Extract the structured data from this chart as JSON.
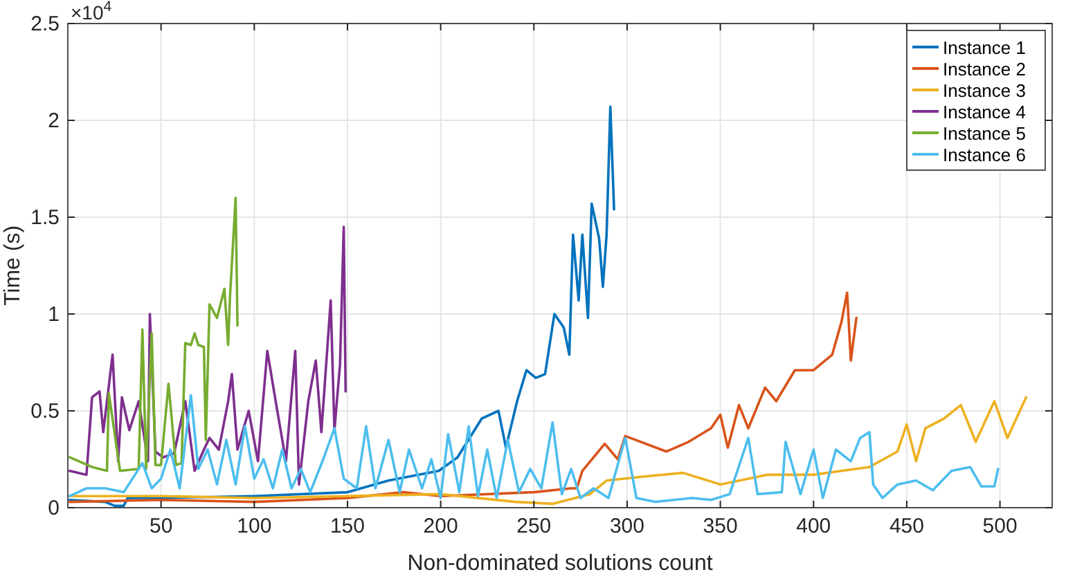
{
  "chart_data": {
    "type": "line",
    "xlabel": "Non-dominated solutions count",
    "ylabel": "Time (s)",
    "annotations": [
      "×10$^{4}$"
    ],
    "xlim": [
      0,
      528
    ],
    "ylim": [
      0,
      2.5
    ],
    "xticks": [
      50,
      100,
      150,
      200,
      250,
      300,
      350,
      400,
      450,
      500
    ],
    "yticks": [
      0,
      0.5,
      1,
      1.5,
      2,
      2.5
    ],
    "grid": true,
    "legend": "top right",
    "line_style": "solid",
    "marker": "none",
    "series": [
      {
        "name": "Instance 1",
        "color": "#0072bd",
        "x": [
          1,
          20,
          25,
          30,
          32,
          50,
          100,
          150,
          172,
          199,
          209,
          222,
          231,
          235,
          241,
          246,
          251,
          256,
          261,
          266,
          269,
          271,
          274,
          276,
          279,
          281,
          285,
          287,
          289,
          291,
          293
        ],
        "values": [
          0.04,
          0.03,
          0.01,
          0.01,
          0.05,
          0.05,
          0.06,
          0.08,
          0.14,
          0.19,
          0.26,
          0.46,
          0.5,
          0.31,
          0.55,
          0.71,
          0.67,
          0.69,
          1.0,
          0.93,
          0.79,
          1.41,
          1.07,
          1.41,
          0.98,
          1.57,
          1.39,
          1.14,
          1.41,
          2.07,
          1.54
        ]
      },
      {
        "name": "Instance 2",
        "color": "#d95319",
        "x": [
          1,
          50,
          100,
          150,
          180,
          200,
          250,
          270,
          273,
          276,
          288,
          295,
          299,
          321,
          333,
          345,
          350,
          354,
          360,
          365,
          374,
          380,
          390,
          400,
          410,
          415,
          418,
          420,
          423
        ],
        "values": [
          0.03,
          0.04,
          0.03,
          0.05,
          0.08,
          0.06,
          0.08,
          0.1,
          0.1,
          0.19,
          0.33,
          0.25,
          0.37,
          0.29,
          0.34,
          0.41,
          0.48,
          0.31,
          0.53,
          0.41,
          0.62,
          0.55,
          0.71,
          0.71,
          0.79,
          0.96,
          1.11,
          0.76,
          0.98
        ]
      },
      {
        "name": "Instance 3",
        "color": "#edb120",
        "x": [
          1,
          50,
          100,
          150,
          200,
          240,
          260,
          280,
          289,
          308,
          330,
          350,
          375,
          400,
          415,
          430,
          445,
          450,
          455,
          460,
          470,
          479,
          487,
          497,
          504,
          514
        ],
        "values": [
          0.06,
          0.06,
          0.05,
          0.06,
          0.07,
          0.03,
          0.02,
          0.07,
          0.14,
          0.16,
          0.18,
          0.12,
          0.17,
          0.17,
          0.19,
          0.21,
          0.29,
          0.43,
          0.24,
          0.41,
          0.46,
          0.53,
          0.34,
          0.55,
          0.36,
          0.57
        ]
      },
      {
        "name": "Instance 4",
        "color": "#7e2f8e",
        "x": [
          1,
          10,
          13,
          17,
          19,
          24,
          27,
          29,
          33,
          38,
          43,
          44,
          47,
          51,
          57,
          63,
          68,
          73,
          76,
          81,
          86,
          88,
          91,
          97,
          102,
          107,
          112,
          117,
          122,
          124,
          129,
          133,
          136,
          141,
          143,
          146,
          148,
          149
        ],
        "values": [
          0.19,
          0.17,
          0.57,
          0.6,
          0.39,
          0.79,
          0.24,
          0.57,
          0.4,
          0.55,
          0.24,
          1.0,
          0.29,
          0.26,
          0.28,
          0.55,
          0.19,
          0.3,
          0.36,
          0.3,
          0.55,
          0.69,
          0.3,
          0.5,
          0.24,
          0.81,
          0.52,
          0.24,
          0.81,
          0.12,
          0.55,
          0.76,
          0.39,
          1.07,
          0.4,
          0.74,
          1.45,
          0.6
        ]
      },
      {
        "name": "Instance 5",
        "color": "#77ac30",
        "x": [
          1,
          13,
          21,
          22,
          28,
          38,
          40,
          42,
          45,
          47,
          50,
          54,
          58,
          61,
          63,
          66,
          68,
          70,
          73,
          74,
          76,
          80,
          84,
          86,
          87,
          90,
          91
        ],
        "values": [
          0.26,
          0.21,
          0.19,
          0.59,
          0.19,
          0.2,
          0.92,
          0.2,
          0.9,
          0.22,
          0.22,
          0.64,
          0.22,
          0.23,
          0.85,
          0.84,
          0.9,
          0.84,
          0.83,
          0.35,
          1.05,
          0.98,
          1.13,
          0.84,
          1.09,
          1.6,
          0.94
        ]
      },
      {
        "name": "Instance 6",
        "color": "#4dbeee",
        "x": [
          1,
          10,
          20,
          30,
          40,
          45,
          50,
          55,
          60,
          66,
          70,
          75,
          80,
          85,
          90,
          95,
          100,
          105,
          110,
          115,
          120,
          125,
          130,
          137,
          143,
          148,
          155,
          160,
          165,
          172,
          178,
          183,
          190,
          195,
          200,
          204,
          210,
          215,
          220,
          225,
          230,
          236,
          242,
          248,
          254,
          260,
          265,
          270,
          275,
          282,
          290,
          299,
          305,
          315,
          325,
          335,
          345,
          355,
          365,
          370,
          383,
          385,
          393,
          400,
          405,
          412,
          420,
          425,
          430,
          432,
          437,
          445,
          455,
          464,
          474,
          484,
          490,
          497,
          499
        ],
        "values": [
          0.06,
          0.1,
          0.1,
          0.08,
          0.23,
          0.1,
          0.15,
          0.3,
          0.1,
          0.58,
          0.2,
          0.3,
          0.12,
          0.35,
          0.12,
          0.42,
          0.15,
          0.25,
          0.1,
          0.3,
          0.1,
          0.2,
          0.08,
          0.25,
          0.41,
          0.15,
          0.1,
          0.42,
          0.1,
          0.35,
          0.08,
          0.3,
          0.1,
          0.25,
          0.05,
          0.38,
          0.08,
          0.42,
          0.06,
          0.3,
          0.05,
          0.35,
          0.08,
          0.2,
          0.1,
          0.44,
          0.07,
          0.2,
          0.05,
          0.1,
          0.05,
          0.36,
          0.05,
          0.03,
          0.04,
          0.05,
          0.04,
          0.07,
          0.36,
          0.07,
          0.08,
          0.34,
          0.07,
          0.3,
          0.05,
          0.3,
          0.24,
          0.36,
          0.39,
          0.12,
          0.05,
          0.12,
          0.14,
          0.09,
          0.19,
          0.21,
          0.11,
          0.11,
          0.2
        ]
      }
    ]
  }
}
